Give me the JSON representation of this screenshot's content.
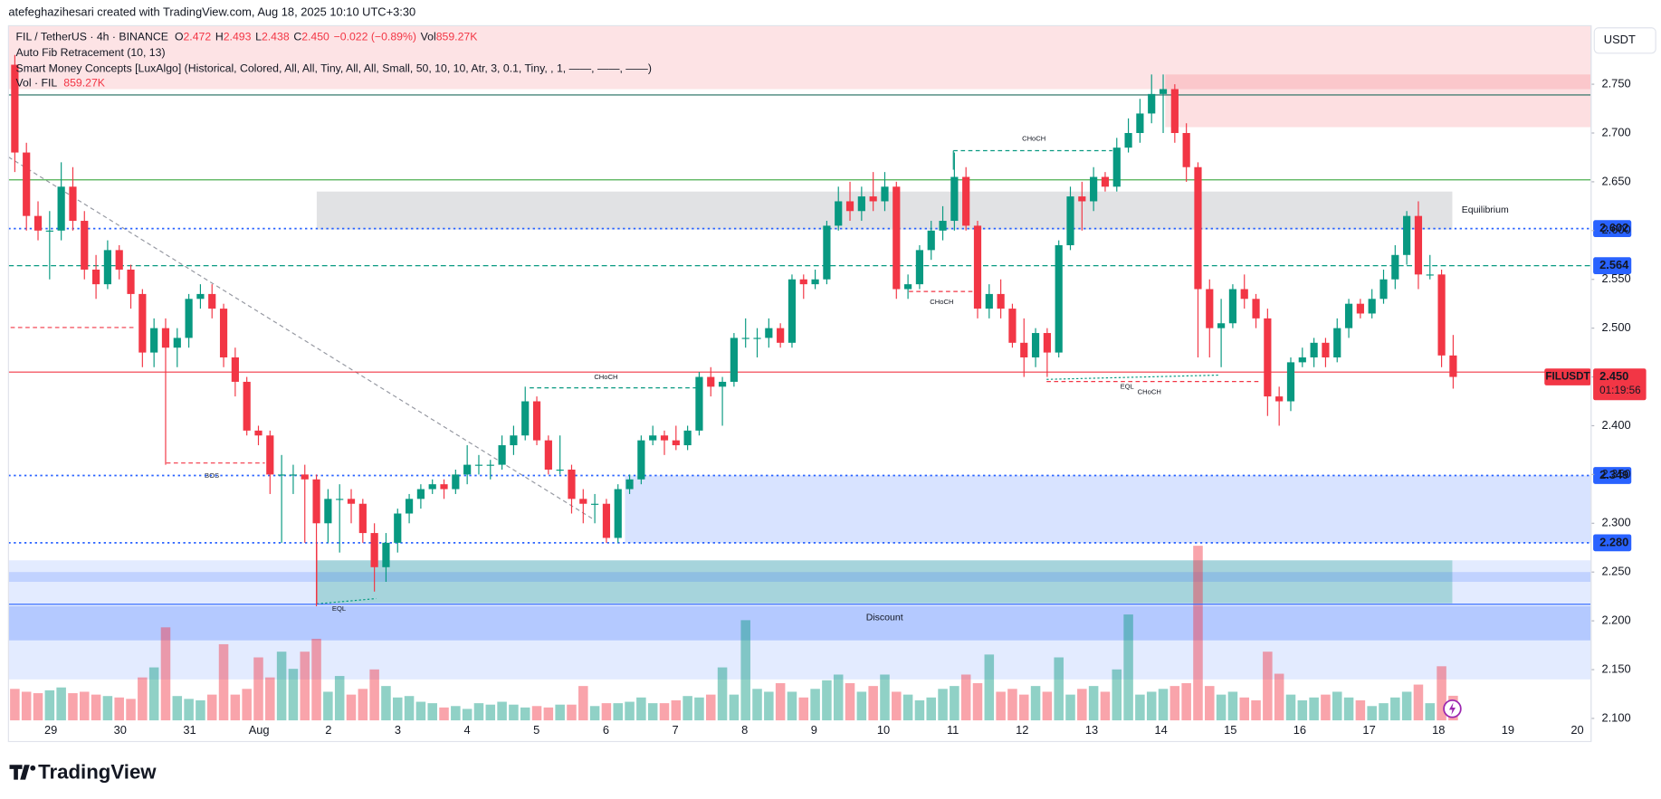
{
  "chart_data": {
    "type": "candlestick",
    "credit": "atefeghazihesari created with TradingView.com, Aug 18, 2025 10:10 UTC+3:30",
    "header": {
      "symbol": "FIL / TetherUS · 4h · BINANCE",
      "o_label": "O",
      "open": 2.472,
      "h_label": "H",
      "high": 2.493,
      "l_label": "L",
      "low": 2.438,
      "c_label": "C",
      "close": {
        "value": 2.45,
        "label": "2.450"
      },
      "change": "−0.022 (−0.89%)",
      "vol_label": "Vol",
      "volume": "859.27K"
    },
    "indicators": [
      "Auto Fib Retracement (10, 13)",
      "Smart Money Concepts [LuxAlgo] (Historical, Colored, All, All, Tiny, All, All, Small, 50, 10, 10, Atr, 3, 0.1, Tiny, , 1, ——, ——, ——)"
    ],
    "vol_pane": {
      "name": "Vol · FIL",
      "value": "859.27K"
    },
    "currency": "USDT",
    "brand": "TradingView",
    "up_color": "#089981",
    "down_color": "#f23645",
    "ylim": [
      2.098,
      2.81
    ],
    "yticks": [
      {
        "value": 2.75,
        "label": "2.750"
      },
      {
        "value": 2.7,
        "label": "2.700"
      },
      {
        "value": 2.65,
        "label": "2.650"
      },
      {
        "value": 2.6,
        "label": "2.600"
      },
      {
        "value": 2.55,
        "label": "2.550"
      },
      {
        "value": 2.5,
        "label": "2.500"
      },
      {
        "value": 2.45,
        "label": "2.450"
      },
      {
        "value": 2.4,
        "label": "2.400"
      },
      {
        "value": 2.35,
        "label": "2.350"
      },
      {
        "value": 2.3,
        "label": "2.300"
      },
      {
        "value": 2.25,
        "label": "2.250"
      },
      {
        "value": 2.2,
        "label": "2.200"
      },
      {
        "value": 2.15,
        "label": "2.150"
      },
      {
        "value": 2.1,
        "label": "2.100"
      }
    ],
    "xtick_labels": [
      "29",
      "30",
      "31",
      "Aug",
      "2",
      "3",
      "4",
      "5",
      "6",
      "7",
      "8",
      "9",
      "10",
      "11",
      "12",
      "13",
      "14",
      "15",
      "16",
      "17",
      "18",
      "19",
      "20"
    ],
    "grid": false,
    "candles": [
      [
        2.77,
        2.78,
        2.66,
        2.68
      ],
      [
        2.68,
        2.69,
        2.6,
        2.615
      ],
      [
        2.615,
        2.63,
        2.59,
        2.6
      ],
      [
        2.6,
        2.62,
        2.55,
        2.6
      ],
      [
        2.6,
        2.67,
        2.59,
        2.645
      ],
      [
        2.645,
        2.665,
        2.6,
        2.61
      ],
      [
        2.61,
        2.62,
        2.55,
        2.56
      ],
      [
        2.56,
        2.575,
        2.53,
        2.545
      ],
      [
        2.545,
        2.59,
        2.54,
        2.58
      ],
      [
        2.58,
        2.585,
        2.55,
        2.56
      ],
      [
        2.56,
        2.565,
        2.52,
        2.535
      ],
      [
        2.535,
        2.54,
        2.46,
        2.475
      ],
      [
        2.475,
        2.51,
        2.46,
        2.5
      ],
      [
        2.5,
        2.51,
        2.36,
        2.48
      ],
      [
        2.48,
        2.5,
        2.46,
        2.49
      ],
      [
        2.49,
        2.535,
        2.48,
        2.53
      ],
      [
        2.53,
        2.545,
        2.52,
        2.535
      ],
      [
        2.535,
        2.545,
        2.51,
        2.52
      ],
      [
        2.52,
        2.525,
        2.46,
        2.47
      ],
      [
        2.47,
        2.48,
        2.43,
        2.445
      ],
      [
        2.445,
        2.45,
        2.39,
        2.395
      ],
      [
        2.395,
        2.4,
        2.38,
        2.39
      ],
      [
        2.39,
        2.395,
        2.33,
        2.35
      ],
      [
        2.35,
        2.37,
        2.28,
        2.35
      ],
      [
        2.35,
        2.36,
        2.33,
        2.35
      ],
      [
        2.35,
        2.36,
        2.28,
        2.345
      ],
      [
        2.345,
        2.35,
        2.215,
        2.3
      ],
      [
        2.3,
        2.335,
        2.28,
        2.325
      ],
      [
        2.325,
        2.34,
        2.27,
        2.325
      ],
      [
        2.325,
        2.335,
        2.3,
        2.32
      ],
      [
        2.32,
        2.325,
        2.28,
        2.29
      ],
      [
        2.29,
        2.3,
        2.23,
        2.255
      ],
      [
        2.255,
        2.29,
        2.24,
        2.28
      ],
      [
        2.28,
        2.315,
        2.27,
        2.31
      ],
      [
        2.31,
        2.33,
        2.3,
        2.325
      ],
      [
        2.325,
        2.34,
        2.315,
        2.335
      ],
      [
        2.335,
        2.345,
        2.33,
        2.34
      ],
      [
        2.34,
        2.345,
        2.325,
        2.335
      ],
      [
        2.335,
        2.355,
        2.33,
        2.35
      ],
      [
        2.35,
        2.38,
        2.34,
        2.36
      ],
      [
        2.36,
        2.37,
        2.35,
        2.36
      ],
      [
        2.36,
        2.365,
        2.345,
        2.36
      ],
      [
        2.36,
        2.39,
        2.355,
        2.38
      ],
      [
        2.38,
        2.4,
        2.37,
        2.39
      ],
      [
        2.39,
        2.44,
        2.385,
        2.425
      ],
      [
        2.425,
        2.43,
        2.38,
        2.385
      ],
      [
        2.385,
        2.39,
        2.35,
        2.355
      ],
      [
        2.355,
        2.39,
        2.35,
        2.355
      ],
      [
        2.355,
        2.36,
        2.31,
        2.325
      ],
      [
        2.325,
        2.335,
        2.3,
        2.32
      ],
      [
        2.32,
        2.33,
        2.3,
        2.32
      ],
      [
        2.32,
        2.325,
        2.28,
        2.285
      ],
      [
        2.285,
        2.34,
        2.28,
        2.335
      ],
      [
        2.335,
        2.35,
        2.33,
        2.345
      ],
      [
        2.345,
        2.39,
        2.34,
        2.385
      ],
      [
        2.385,
        2.4,
        2.38,
        2.39
      ],
      [
        2.39,
        2.395,
        2.37,
        2.385
      ],
      [
        2.385,
        2.4,
        2.375,
        2.38
      ],
      [
        2.38,
        2.4,
        2.375,
        2.395
      ],
      [
        2.395,
        2.455,
        2.39,
        2.45
      ],
      [
        2.45,
        2.46,
        2.43,
        2.44
      ],
      [
        2.44,
        2.45,
        2.4,
        2.445
      ],
      [
        2.445,
        2.495,
        2.44,
        2.49
      ],
      [
        2.49,
        2.51,
        2.48,
        2.49
      ],
      [
        2.49,
        2.5,
        2.47,
        2.49
      ],
      [
        2.49,
        2.51,
        2.48,
        2.5
      ],
      [
        2.5,
        2.505,
        2.48,
        2.485
      ],
      [
        2.485,
        2.555,
        2.48,
        2.55
      ],
      [
        2.55,
        2.555,
        2.53,
        2.545
      ],
      [
        2.545,
        2.56,
        2.54,
        2.55
      ],
      [
        2.55,
        2.61,
        2.545,
        2.605
      ],
      [
        2.605,
        2.645,
        2.6,
        2.63
      ],
      [
        2.63,
        2.65,
        2.61,
        2.62
      ],
      [
        2.62,
        2.645,
        2.61,
        2.635
      ],
      [
        2.635,
        2.66,
        2.62,
        2.63
      ],
      [
        2.63,
        2.66,
        2.62,
        2.645
      ],
      [
        2.645,
        2.65,
        2.53,
        2.54
      ],
      [
        2.54,
        2.555,
        2.53,
        2.545
      ],
      [
        2.545,
        2.585,
        2.54,
        2.58
      ],
      [
        2.58,
        2.61,
        2.57,
        2.6
      ],
      [
        2.6,
        2.625,
        2.59,
        2.61
      ],
      [
        2.61,
        2.68,
        2.6,
        2.655
      ],
      [
        2.655,
        2.665,
        2.6,
        2.605
      ],
      [
        2.605,
        2.61,
        2.51,
        2.52
      ],
      [
        2.52,
        2.545,
        2.51,
        2.535
      ],
      [
        2.535,
        2.55,
        2.51,
        2.52
      ],
      [
        2.52,
        2.525,
        2.48,
        2.485
      ],
      [
        2.485,
        2.51,
        2.45,
        2.47
      ],
      [
        2.47,
        2.5,
        2.46,
        2.495
      ],
      [
        2.495,
        2.5,
        2.45,
        2.475
      ],
      [
        2.475,
        2.59,
        2.47,
        2.585
      ],
      [
        2.585,
        2.645,
        2.58,
        2.635
      ],
      [
        2.635,
        2.65,
        2.6,
        2.63
      ],
      [
        2.63,
        2.665,
        2.62,
        2.655
      ],
      [
        2.655,
        2.66,
        2.64,
        2.645
      ],
      [
        2.645,
        2.695,
        2.64,
        2.685
      ],
      [
        2.685,
        2.715,
        2.68,
        2.7
      ],
      [
        2.7,
        2.735,
        2.69,
        2.72
      ],
      [
        2.72,
        2.76,
        2.71,
        2.74
      ],
      [
        2.74,
        2.76,
        2.7,
        2.745
      ],
      [
        2.745,
        2.75,
        2.69,
        2.7
      ],
      [
        2.7,
        2.71,
        2.65,
        2.665
      ],
      [
        2.665,
        2.67,
        2.47,
        2.54
      ],
      [
        2.54,
        2.55,
        2.47,
        2.5
      ],
      [
        2.5,
        2.53,
        2.46,
        2.505
      ],
      [
        2.505,
        2.545,
        2.5,
        2.54
      ],
      [
        2.54,
        2.555,
        2.52,
        2.53
      ],
      [
        2.53,
        2.535,
        2.5,
        2.51
      ],
      [
        2.51,
        2.52,
        2.41,
        2.43
      ],
      [
        2.43,
        2.44,
        2.4,
        2.425
      ],
      [
        2.425,
        2.47,
        2.415,
        2.465
      ],
      [
        2.465,
        2.48,
        2.46,
        2.47
      ],
      [
        2.47,
        2.49,
        2.46,
        2.485
      ],
      [
        2.485,
        2.49,
        2.46,
        2.47
      ],
      [
        2.47,
        2.51,
        2.465,
        2.5
      ],
      [
        2.5,
        2.53,
        2.49,
        2.525
      ],
      [
        2.525,
        2.53,
        2.51,
        2.515
      ],
      [
        2.515,
        2.54,
        2.51,
        2.53
      ],
      [
        2.53,
        2.56,
        2.525,
        2.55
      ],
      [
        2.55,
        2.585,
        2.54,
        2.575
      ],
      [
        2.575,
        2.62,
        2.565,
        2.615
      ],
      [
        2.615,
        2.63,
        2.54,
        2.555
      ],
      [
        2.555,
        2.575,
        2.55,
        2.555
      ],
      [
        2.555,
        2.56,
        2.46,
        2.472
      ],
      [
        2.472,
        2.493,
        2.438,
        2.45
      ]
    ],
    "volume": [
      1100,
      1000,
      950,
      1050,
      1150,
      950,
      1000,
      900,
      850,
      800,
      750,
      1500,
      1850,
      3250,
      850,
      750,
      700,
      900,
      2660,
      900,
      1100,
      2200,
      1500,
      2400,
      1800,
      2400,
      2850,
      1000,
      1550,
      900,
      1100,
      1780,
      1200,
      800,
      850,
      650,
      600,
      450,
      500,
      400,
      600,
      550,
      650,
      550,
      450,
      500,
      450,
      550,
      550,
      1200,
      500,
      600,
      600,
      650,
      800,
      600,
      600,
      700,
      850,
      800,
      900,
      1850,
      900,
      3500,
      1100,
      1000,
      1300,
      1000,
      800,
      1100,
      1400,
      1600,
      1300,
      1000,
      1200,
      1600,
      1000,
      900,
      700,
      800,
      1100,
      1200,
      1600,
      1300,
      2300,
      1000,
      1100,
      900,
      1200,
      1000,
      2200,
      900,
      1100,
      1200,
      1000,
      1780,
      3700,
      900,
      1000,
      1100,
      1200,
      1300,
      6100,
      1200,
      900,
      1000,
      800,
      700,
      2400,
      1630,
      900,
      700,
      800,
      900,
      1000,
      800,
      700,
      500,
      600,
      800,
      1000,
      1250,
      600,
      1890,
      859.27
    ],
    "zones": [
      {
        "from": 2.745,
        "to": 2.81,
        "color": "rgba(242,54,69,0.14)"
      },
      {
        "from": 2.706,
        "to": 2.76,
        "color": "rgba(242,54,69,0.16)"
      },
      {
        "from": 2.601,
        "to": 2.64,
        "color": "rgba(120,123,134,0.22)"
      },
      {
        "from": 2.28,
        "to": 2.349,
        "color": "rgba(41,98,255,0.18)"
      },
      {
        "from": 2.14,
        "to": 2.262,
        "color": "rgba(41,98,255,0.13)"
      },
      {
        "from": 2.218,
        "to": 2.262,
        "color": "rgba(8,153,129,0.28)"
      },
      {
        "from": 2.24,
        "to": 2.25,
        "color": "rgba(41,98,255,0.18)"
      },
      {
        "from": 2.18,
        "to": 2.215,
        "color": "rgba(41,98,255,0.25)"
      }
    ],
    "levels": [
      {
        "value": 2.739,
        "color": "#1e6b5c",
        "style": "solid",
        "tag": false
      },
      {
        "value": 2.652,
        "color": "#4caf50",
        "style": "solid",
        "tag": false
      },
      {
        "value": 2.602,
        "color": "#2962ff",
        "style": "dotted",
        "tag": true
      },
      {
        "value": 2.564,
        "color": "#089981",
        "style": "dashed",
        "tag": true
      },
      {
        "value": 2.455,
        "color": "#f23645",
        "style": "solid",
        "tag": false
      },
      {
        "value": {
          "value": 2.349,
          "label": "2.349"
        },
        "color": "#2962ff",
        "style": "dotted",
        "tag": true
      },
      {
        "value": {
          "value": 2.28,
          "label": "2.280"
        },
        "color": "#2962ff",
        "style": "dotted",
        "tag": true
      },
      {
        "value": 2.217,
        "color": "#2962ff",
        "style": "solid",
        "tag": false
      }
    ],
    "last_price": {
      "symbol": "FILUSDT",
      "price": {
        "value": 2.45,
        "label": "2.450"
      },
      "timer": "01:19:56"
    },
    "annotations": [
      {
        "text": "CHoCH",
        "color": "#089981"
      },
      {
        "text": "CHoCH",
        "color": "#089981"
      },
      {
        "text": "CHoCH",
        "color": "#f23645"
      },
      {
        "text": "EQL",
        "color": "#089981"
      },
      {
        "text": "CHoCH",
        "color": "#f23645"
      },
      {
        "text": "BOS",
        "color": "#f23645"
      },
      {
        "text": "EQL",
        "color": "#089981"
      },
      {
        "text": "Equilibrium",
        "color": "#9598a1"
      },
      {
        "text": "Discount",
        "color": "#089981"
      }
    ]
  }
}
